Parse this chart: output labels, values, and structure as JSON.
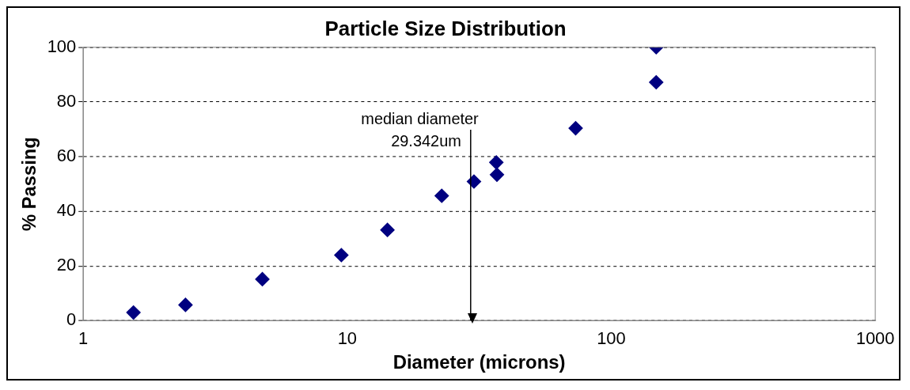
{
  "chart_data": {
    "type": "scatter",
    "title": "Particle Size Distribution",
    "xlabel": "Diameter (microns)",
    "ylabel": "% Passing",
    "x": [
      1.55,
      2.44,
      4.77,
      9.5,
      14.2,
      22.8,
      30.2,
      36.7,
      36.9,
      73.3,
      148,
      148
    ],
    "values": [
      3,
      5.8,
      15.2,
      24,
      33.2,
      45.7,
      50.9,
      57.9,
      53.4,
      70.4,
      87.2,
      100
    ],
    "color": "#000080",
    "marker": "diamond",
    "log": "x",
    "xlim": [
      1,
      1000
    ],
    "xticks": [
      1,
      10,
      100,
      1000
    ],
    "ylim": [
      0,
      100
    ],
    "yticks": [
      0,
      20,
      40,
      60,
      80,
      100
    ],
    "grid": "y",
    "legend": false,
    "ref_lines": [
      {
        "axis": "x",
        "value": 29.342,
        "label": "median diameter\n29.342um",
        "color": "#000000"
      }
    ]
  }
}
